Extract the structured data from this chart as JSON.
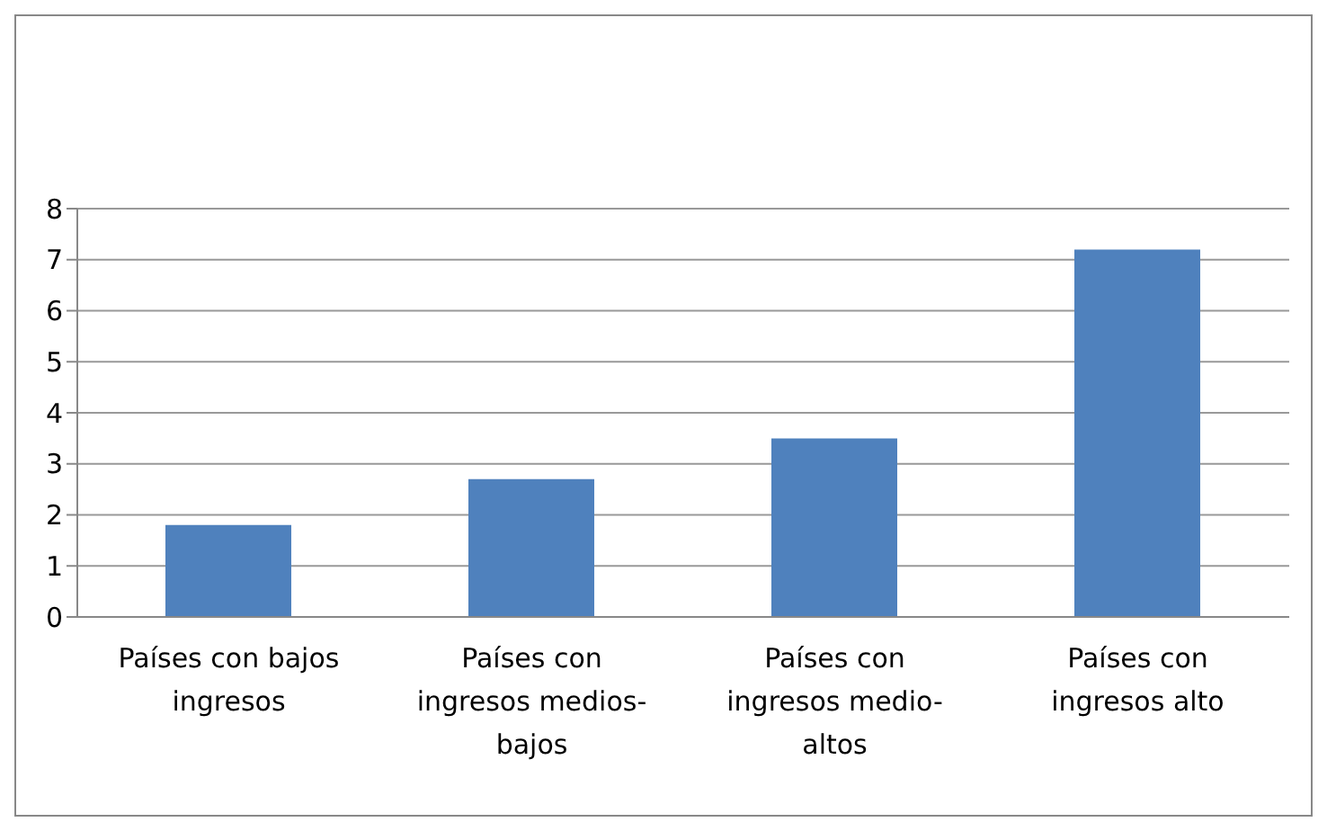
{
  "chart_data": {
    "type": "bar",
    "categories": [
      "Países con bajos ingresos",
      "Países con ingresos medios-bajos",
      "Países con ingresos medio-altos",
      "Países con ingresos alto"
    ],
    "values": [
      1.8,
      2.7,
      3.5,
      7.2
    ],
    "color": "#4f81bd",
    "ylim": [
      0,
      8
    ],
    "yticks": [
      0,
      1,
      2,
      3,
      4,
      5,
      6,
      7,
      8
    ],
    "grid": "y"
  }
}
